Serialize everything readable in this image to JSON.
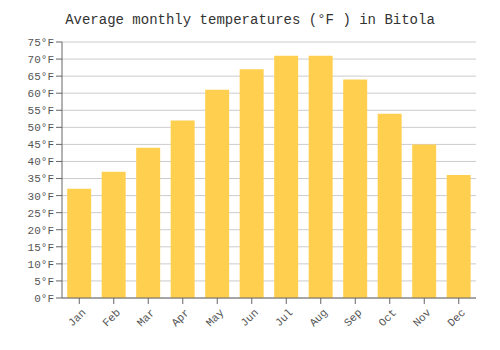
{
  "chart_data": {
    "type": "bar",
    "title": "Average monthly temperatures (°F ) in Bitola",
    "categories": [
      "Jan",
      "Feb",
      "Mar",
      "Apr",
      "May",
      "Jun",
      "Jul",
      "Aug",
      "Sep",
      "Oct",
      "Nov",
      "Dec"
    ],
    "values": [
      32,
      37,
      44,
      52,
      61,
      67,
      71,
      71,
      64,
      54,
      45,
      36
    ],
    "color": "#FFD050",
    "ylim": [
      0,
      75
    ],
    "yticks": [
      {
        "value": 0,
        "label": "0°F"
      },
      {
        "value": 5,
        "label": "5°F"
      },
      {
        "value": 10,
        "label": "10°F"
      },
      {
        "value": 15,
        "label": "15°F"
      },
      {
        "value": 20,
        "label": "20°F"
      },
      {
        "value": 25,
        "label": "25°F"
      },
      {
        "value": 30,
        "label": "30°F"
      },
      {
        "value": 35,
        "label": "35°F"
      },
      {
        "value": 40,
        "label": "40°F"
      },
      {
        "value": 45,
        "label": "45°F"
      },
      {
        "value": 50,
        "label": "50°F"
      },
      {
        "value": 55,
        "label": "55°F"
      },
      {
        "value": 60,
        "label": "60°F"
      },
      {
        "value": 65,
        "label": "65°F"
      },
      {
        "value": 70,
        "label": "70°F"
      },
      {
        "value": 75,
        "label": "75°F"
      }
    ],
    "grid": true
  }
}
